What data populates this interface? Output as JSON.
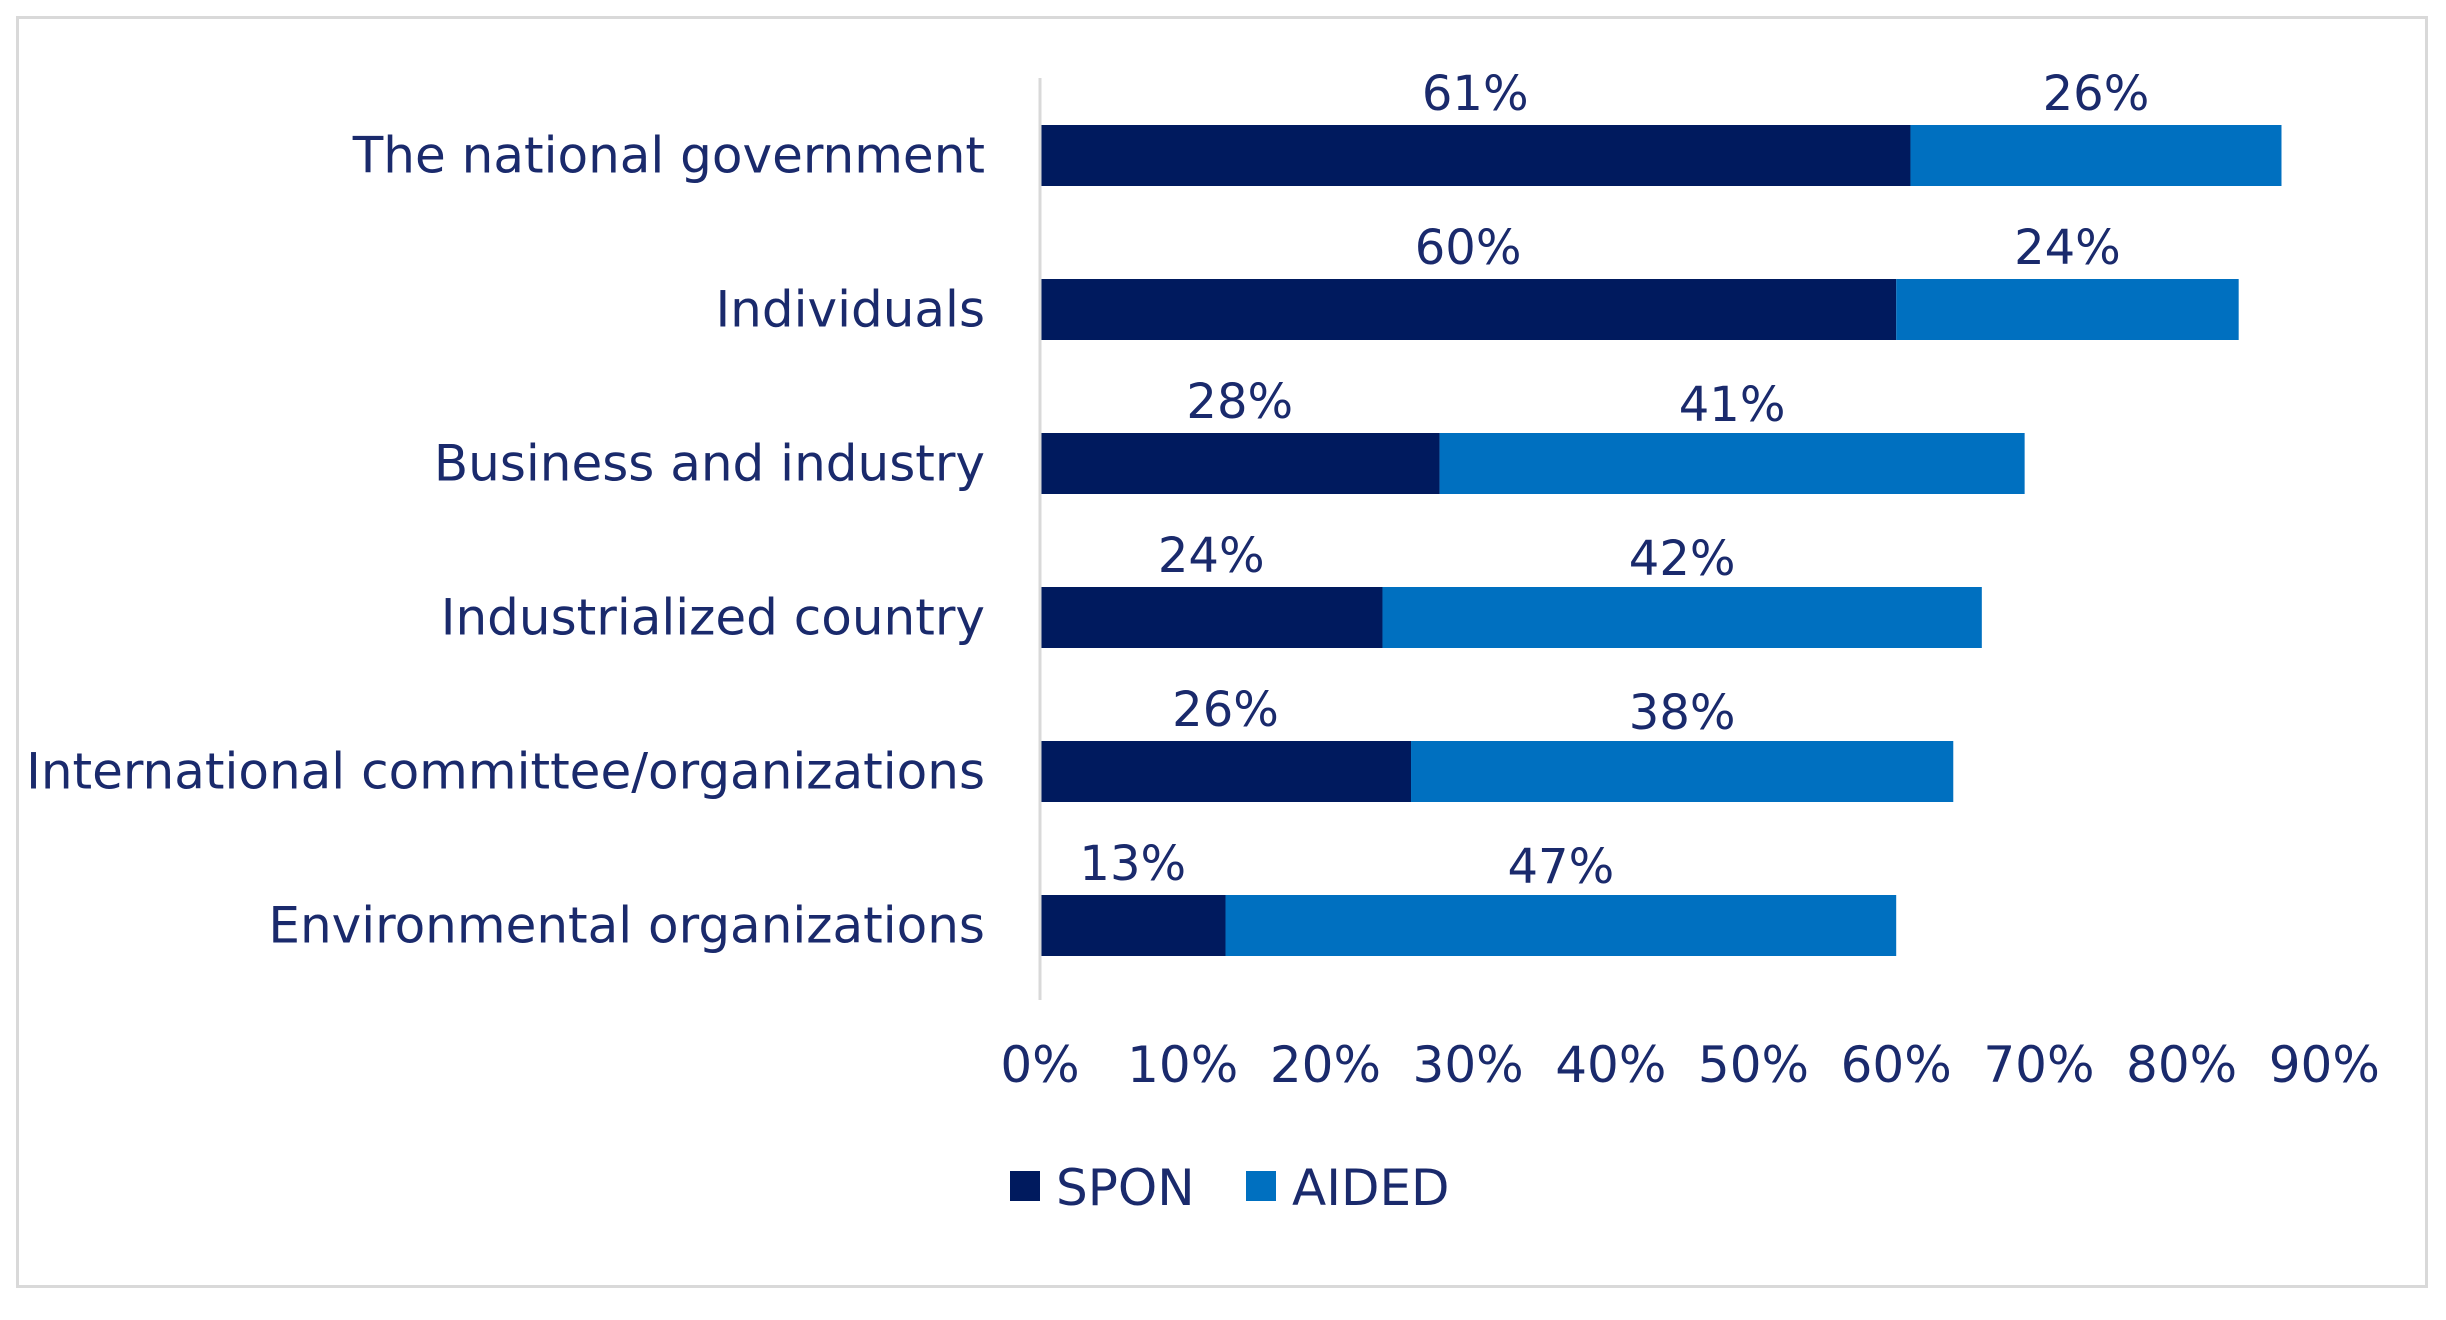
{
  "chart_data": {
    "type": "bar",
    "orientation": "horizontal",
    "stacked": true,
    "categories": [
      "The national government",
      "Individuals",
      "Business and industry",
      "Industrialized country",
      "International committee/organizations",
      "Environmental organizations"
    ],
    "series": [
      {
        "name": "SPON",
        "values": [
          61,
          60,
          28,
          24,
          26,
          13
        ],
        "labels": [
          "61%",
          "60%",
          "28%",
          "24%",
          "26%",
          "13%"
        ],
        "color": "#001a5e"
      },
      {
        "name": "AIDED",
        "values": [
          26,
          24,
          41,
          42,
          38,
          47
        ],
        "labels": [
          "26%",
          "24%",
          "41%",
          "42%",
          "38%",
          "47%"
        ],
        "color": "#0070c0"
      }
    ],
    "xlim": [
      0,
      90
    ],
    "xticks": [
      0,
      10,
      20,
      30,
      40,
      50,
      60,
      70,
      80,
      90
    ],
    "xtick_labels": [
      "0%",
      "10%",
      "20%",
      "30%",
      "40%",
      "50%",
      "60%",
      "70%",
      "80%",
      "90%"
    ],
    "legend": [
      "SPON",
      "AIDED"
    ],
    "legend_position": "bottom",
    "grid": false,
    "axis_color": "#d9d9d9",
    "text_color": "#1a2a6c"
  }
}
